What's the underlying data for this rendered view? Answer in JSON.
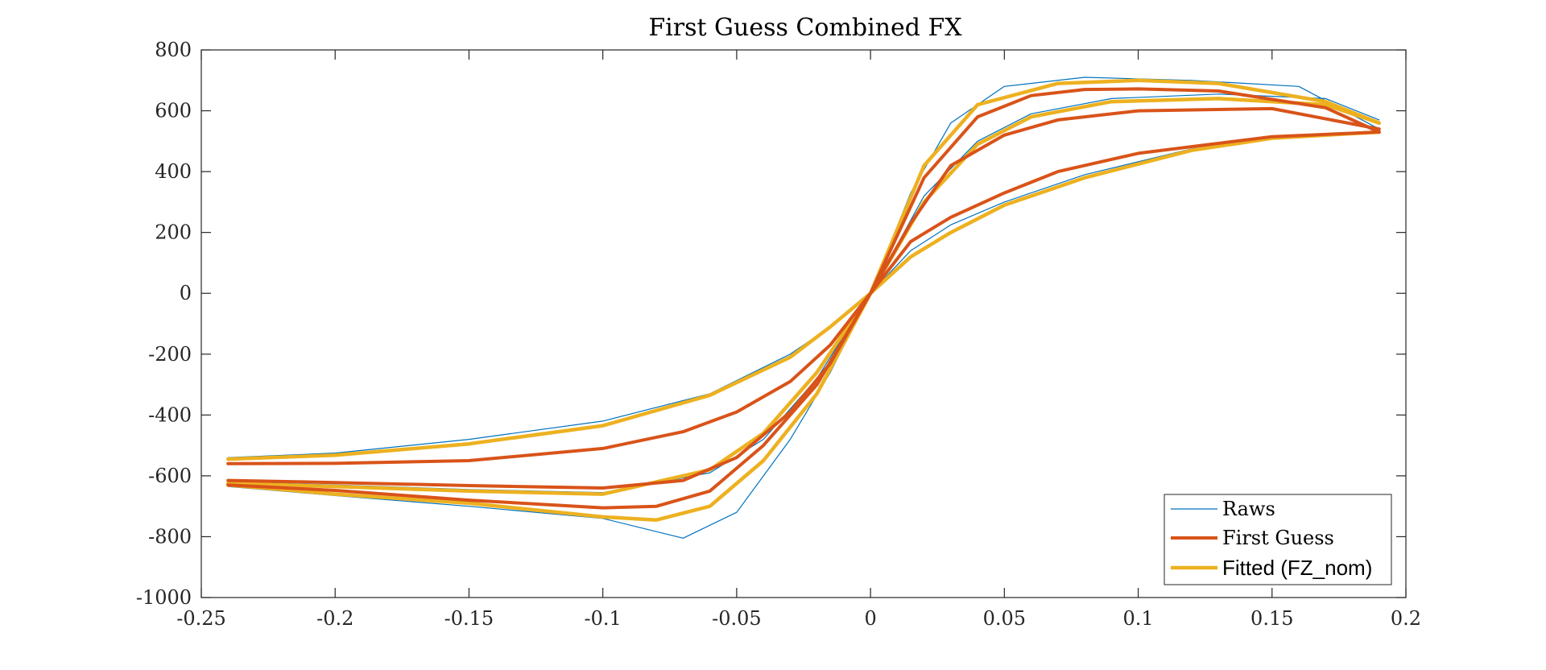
{
  "chart_data": {
    "type": "line",
    "title": "First Guess Combined FX",
    "xlabel": "",
    "ylabel": "",
    "xlim": [
      -0.25,
      0.2
    ],
    "ylim": [
      -1000,
      800
    ],
    "xticks": [
      -0.25,
      -0.2,
      -0.15,
      -0.1,
      -0.05,
      0,
      0.05,
      0.1,
      0.15,
      0.2
    ],
    "xtick_labels": [
      "-0.25",
      "-0.2",
      "-0.15",
      "-0.1",
      "-0.05",
      "0",
      "0.05",
      "0.1",
      "0.15",
      "0.2"
    ],
    "yticks": [
      -1000,
      -800,
      -600,
      -400,
      -200,
      0,
      200,
      400,
      600,
      800
    ],
    "ytick_labels": [
      "-1000",
      "-800",
      "-600",
      "-400",
      "-200",
      "0",
      "200",
      "400",
      "600",
      "800"
    ],
    "grid": false,
    "legend_position": "bottom-right",
    "legend": [
      "Raws",
      "First Guess",
      "Fitted (FZ_nom)"
    ],
    "colors": {
      "Raws": "#0072BD",
      "First Guess": "#D95319",
      "Fitted (FZ_nom)": "#EDB120"
    },
    "series": [
      {
        "name": "First Guess",
        "x": [
          -0.24,
          -0.2,
          -0.15,
          -0.1,
          -0.07,
          -0.05,
          -0.03,
          -0.015,
          0,
          0.015,
          0.03,
          0.05,
          0.07,
          0.1,
          0.15,
          0.19
        ],
        "y": [
          -560,
          -559,
          -550,
          -510,
          -455,
          -390,
          -290,
          -170,
          0,
          170,
          250,
          330,
          400,
          460,
          515,
          530
        ]
      },
      {
        "name": "First Guess",
        "x": [
          -0.24,
          -0.2,
          -0.15,
          -0.1,
          -0.07,
          -0.05,
          -0.03,
          -0.015,
          0,
          0.015,
          0.03,
          0.05,
          0.07,
          0.1,
          0.15,
          0.19
        ],
        "y": [
          -615,
          -622,
          -632,
          -640,
          -615,
          -540,
          -390,
          -230,
          0,
          230,
          420,
          520,
          570,
          600,
          607,
          540
        ]
      },
      {
        "name": "First Guess",
        "x": [
          -0.24,
          -0.2,
          -0.15,
          -0.1,
          -0.08,
          -0.06,
          -0.04,
          -0.02,
          0,
          0.02,
          0.04,
          0.06,
          0.08,
          0.1,
          0.13,
          0.17,
          0.19
        ],
        "y": [
          -630,
          -648,
          -680,
          -705,
          -700,
          -650,
          -500,
          -300,
          0,
          380,
          580,
          650,
          670,
          672,
          665,
          610,
          530
        ]
      },
      {
        "name": "Fitted (FZ_nom)",
        "x": [
          -0.24,
          -0.2,
          -0.15,
          -0.1,
          -0.06,
          -0.03,
          -0.015,
          0,
          0.015,
          0.03,
          0.05,
          0.08,
          0.12,
          0.15,
          0.19
        ],
        "y": [
          -545,
          -532,
          -495,
          -435,
          -335,
          -210,
          -110,
          0,
          120,
          200,
          290,
          380,
          470,
          510,
          530
        ]
      },
      {
        "name": "Fitted (FZ_nom)",
        "x": [
          -0.24,
          -0.2,
          -0.15,
          -0.1,
          -0.06,
          -0.04,
          -0.02,
          0,
          0.02,
          0.04,
          0.06,
          0.09,
          0.13,
          0.17,
          0.19
        ],
        "y": [
          -625,
          -635,
          -650,
          -660,
          -580,
          -460,
          -260,
          0,
          300,
          490,
          580,
          630,
          640,
          620,
          560
        ]
      },
      {
        "name": "Fitted (FZ_nom)",
        "x": [
          -0.24,
          -0.2,
          -0.15,
          -0.1,
          -0.08,
          -0.06,
          -0.04,
          -0.02,
          0,
          0.02,
          0.04,
          0.07,
          0.1,
          0.13,
          0.17,
          0.19
        ],
        "y": [
          -630,
          -660,
          -690,
          -735,
          -745,
          -700,
          -550,
          -330,
          0,
          420,
          620,
          690,
          700,
          690,
          630,
          560
        ]
      },
      {
        "name": "Raws",
        "x": [
          -0.24,
          -0.2,
          -0.15,
          -0.1,
          -0.06,
          -0.03,
          -0.015,
          0,
          0.015,
          0.03,
          0.05,
          0.08,
          0.12,
          0.15,
          0.19
        ],
        "y": [
          -540,
          -525,
          -480,
          -420,
          -330,
          -200,
          -110,
          0,
          140,
          225,
          300,
          390,
          475,
          510,
          530
        ]
      },
      {
        "name": "Raws",
        "x": [
          -0.24,
          -0.2,
          -0.15,
          -0.1,
          -0.06,
          -0.04,
          -0.02,
          0,
          0.02,
          0.04,
          0.06,
          0.09,
          0.13,
          0.17,
          0.19
        ],
        "y": [
          -620,
          -630,
          -645,
          -655,
          -590,
          -480,
          -280,
          0,
          320,
          500,
          590,
          640,
          655,
          640,
          570
        ]
      },
      {
        "name": "Raws",
        "x": [
          -0.24,
          -0.2,
          -0.15,
          -0.1,
          -0.07,
          -0.05,
          -0.03,
          -0.015,
          0,
          0.015,
          0.03,
          0.05,
          0.08,
          0.12,
          0.16,
          0.19
        ],
        "y": [
          -635,
          -665,
          -700,
          -740,
          -805,
          -720,
          -480,
          -260,
          0,
          330,
          560,
          680,
          710,
          700,
          680,
          540
        ]
      }
    ]
  }
}
